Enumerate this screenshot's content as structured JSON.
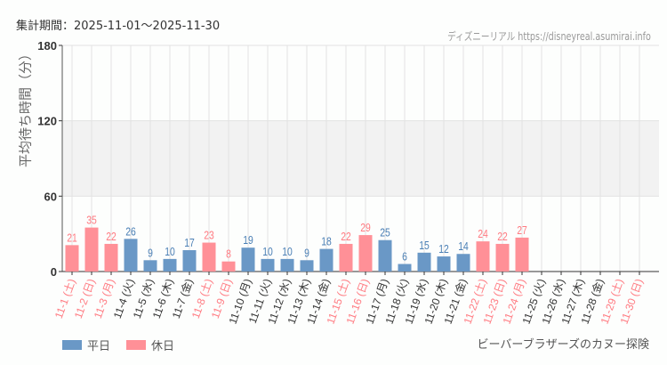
{
  "header": {
    "period": "集計期間：2025-11-01～2025-11-30",
    "credit": "ディズニーリアル https://disneyreal.asumirai.info"
  },
  "attraction": "ビーバーブラザーズのカヌー探険",
  "legend": [
    {
      "label": "平日",
      "color": "#6a98c6"
    },
    {
      "label": "休日",
      "color": "#ff9097"
    }
  ],
  "chart_data": {
    "type": "bar",
    "ylabel": "平均待ち時間（分）",
    "ylim": [
      0,
      180
    ],
    "yticks": [
      0,
      60,
      120,
      180
    ],
    "grid": true,
    "legend_position": "bottom-left",
    "categories": [
      "11-1 (土)",
      "11-2 (日)",
      "11-3 (月)",
      "11-4 (火)",
      "11-5 (水)",
      "11-6 (木)",
      "11-7 (金)",
      "11-8 (土)",
      "11-9 (日)",
      "11-10 (月)",
      "11-11 (火)",
      "11-12 (水)",
      "11-13 (木)",
      "11-14 (金)",
      "11-15 (土)",
      "11-16 (日)",
      "11-17 (月)",
      "11-18 (火)",
      "11-19 (水)",
      "11-20 (木)",
      "11-21 (金)",
      "11-22 (土)",
      "11-23 (日)",
      "11-24 (月)",
      "11-25 (火)",
      "11-26 (水)",
      "11-27 (木)",
      "11-28 (金)",
      "11-29 (土)",
      "11-30 (日)"
    ],
    "values": [
      21,
      35,
      22,
      26,
      9,
      10,
      17,
      23,
      8,
      19,
      10,
      10,
      9,
      18,
      22,
      29,
      25,
      6,
      15,
      12,
      14,
      24,
      22,
      27,
      null,
      null,
      null,
      null,
      null,
      null
    ],
    "holiday": [
      true,
      true,
      true,
      false,
      false,
      false,
      false,
      true,
      true,
      false,
      false,
      false,
      false,
      false,
      true,
      true,
      false,
      false,
      false,
      false,
      false,
      true,
      true,
      true,
      false,
      false,
      false,
      false,
      true,
      true
    ],
    "weekday_color": "#6a98c6",
    "holiday_color": "#ff9097",
    "holiday_label_color": "#ff7b82",
    "weekday_label_color": "#333333"
  }
}
